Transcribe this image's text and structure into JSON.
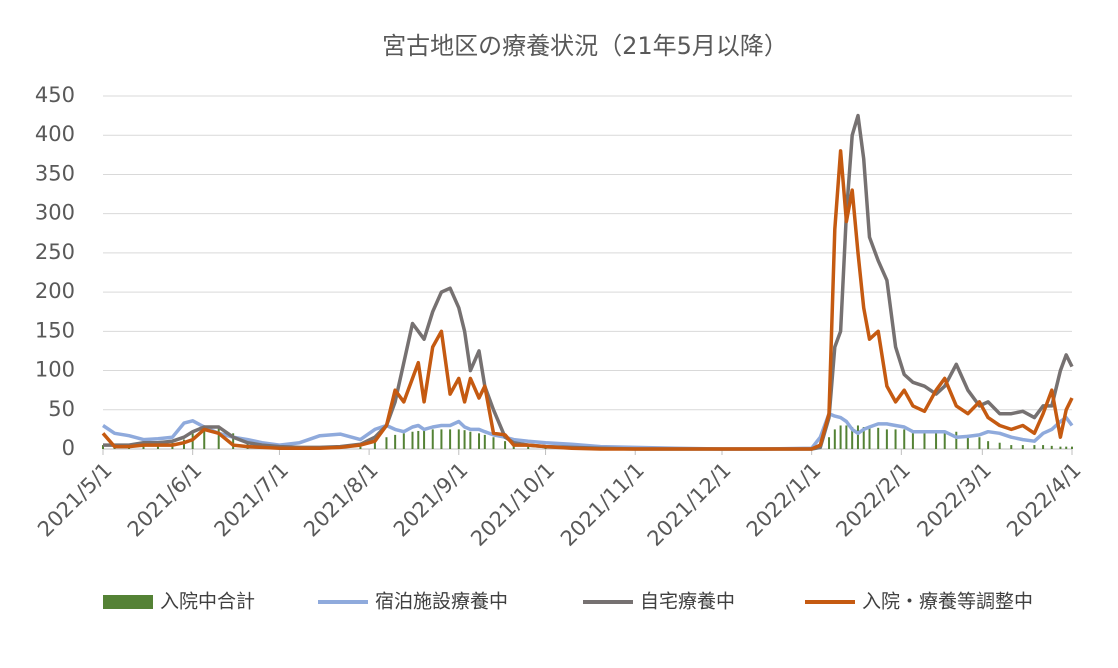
{
  "chart_data": {
    "type": "combo",
    "title": "宮古地区の療養状況（21年5月以降）",
    "x": [
      "2021/5/1",
      "2021/5/5",
      "2021/5/10",
      "2021/5/15",
      "2021/5/20",
      "2021/5/25",
      "2021/5/29",
      "2021/6/1",
      "2021/6/5",
      "2021/6/10",
      "2021/6/15",
      "2021/6/20",
      "2021/6/25",
      "2021/7/1",
      "2021/7/8",
      "2021/7/15",
      "2021/7/22",
      "2021/7/29",
      "2021/8/3",
      "2021/8/7",
      "2021/8/10",
      "2021/8/13",
      "2021/8/16",
      "2021/8/18",
      "2021/8/20",
      "2021/8/23",
      "2021/8/26",
      "2021/8/29",
      "2021/9/1",
      "2021/9/3",
      "2021/9/5",
      "2021/9/8",
      "2021/9/10",
      "2021/9/13",
      "2021/9/17",
      "2021/9/20",
      "2021/9/25",
      "2021/10/1",
      "2021/10/10",
      "2021/10/20",
      "2021/11/1",
      "2021/11/15",
      "2021/12/1",
      "2021/12/15",
      "2022/1/1",
      "2022/1/4",
      "2022/1/7",
      "2022/1/9",
      "2022/1/11",
      "2022/1/13",
      "2022/1/15",
      "2022/1/17",
      "2022/1/19",
      "2022/1/21",
      "2022/1/24",
      "2022/1/27",
      "2022/1/30",
      "2022/2/2",
      "2022/2/5",
      "2022/2/9",
      "2022/2/13",
      "2022/2/16",
      "2022/2/20",
      "2022/2/24",
      "2022/2/28",
      "2022/3/3",
      "2022/3/7",
      "2022/3/11",
      "2022/3/15",
      "2022/3/19",
      "2022/3/22",
      "2022/3/25",
      "2022/3/28",
      "2022/3/30",
      "2022/4/1"
    ],
    "series": [
      {
        "name": "入院中合計",
        "kind": "bar",
        "color": "#548235",
        "values": [
          5,
          5,
          5,
          6,
          6,
          8,
          12,
          20,
          30,
          30,
          20,
          10,
          8,
          5,
          3,
          2,
          2,
          3,
          12,
          15,
          18,
          20,
          22,
          23,
          25,
          25,
          25,
          25,
          25,
          24,
          22,
          20,
          18,
          15,
          10,
          8,
          5,
          3,
          2,
          1,
          0,
          0,
          0,
          0,
          0,
          2,
          15,
          25,
          30,
          30,
          28,
          30,
          28,
          28,
          27,
          25,
          25,
          25,
          24,
          22,
          20,
          20,
          22,
          18,
          15,
          10,
          8,
          5,
          5,
          5,
          5,
          4,
          3,
          3,
          3
        ]
      },
      {
        "name": "宿泊施設療養中",
        "kind": "line",
        "color": "#8faadc",
        "values": [
          30,
          20,
          17,
          12,
          13,
          15,
          33,
          36,
          28,
          20,
          15,
          12,
          8,
          5,
          8,
          17,
          19,
          12,
          25,
          30,
          25,
          22,
          28,
          30,
          25,
          28,
          30,
          30,
          35,
          28,
          25,
          25,
          22,
          18,
          15,
          12,
          10,
          8,
          6,
          3,
          2,
          1,
          0,
          0,
          1,
          15,
          45,
          42,
          40,
          35,
          25,
          20,
          25,
          28,
          32,
          32,
          30,
          28,
          22,
          22,
          22,
          22,
          15,
          16,
          18,
          22,
          20,
          15,
          12,
          10,
          20,
          25,
          35,
          40,
          30
        ]
      },
      {
        "name": "自宅療養中",
        "kind": "line",
        "color": "#767171",
        "values": [
          5,
          5,
          5,
          8,
          8,
          10,
          15,
          22,
          28,
          28,
          15,
          8,
          5,
          3,
          2,
          2,
          3,
          6,
          15,
          30,
          60,
          110,
          160,
          150,
          140,
          175,
          200,
          205,
          180,
          150,
          100,
          125,
          80,
          50,
          15,
          8,
          5,
          3,
          2,
          1,
          0,
          0,
          0,
          0,
          0,
          2,
          40,
          130,
          150,
          300,
          400,
          425,
          370,
          270,
          240,
          215,
          130,
          95,
          85,
          80,
          70,
          80,
          108,
          75,
          55,
          60,
          45,
          45,
          48,
          40,
          55,
          55,
          100,
          120,
          105
        ]
      },
      {
        "name": "入院・療養等調整中",
        "kind": "line",
        "color": "#c55a11",
        "values": [
          20,
          3,
          3,
          5,
          5,
          5,
          8,
          12,
          25,
          20,
          5,
          3,
          2,
          1,
          1,
          1,
          2,
          5,
          10,
          30,
          75,
          60,
          90,
          110,
          60,
          130,
          150,
          70,
          90,
          60,
          90,
          65,
          80,
          20,
          18,
          5,
          5,
          3,
          1,
          0,
          0,
          0,
          0,
          0,
          0,
          5,
          45,
          280,
          380,
          290,
          330,
          250,
          180,
          140,
          150,
          80,
          60,
          75,
          55,
          48,
          75,
          90,
          55,
          45,
          60,
          40,
          30,
          25,
          30,
          20,
          45,
          75,
          15,
          50,
          65
        ]
      }
    ],
    "xlim": [
      "2021/5/1",
      "2022/4/1"
    ],
    "xticks": [
      "2021/5/1",
      "2021/6/1",
      "2021/7/1",
      "2021/8/1",
      "2021/9/1",
      "2021/10/1",
      "2021/11/1",
      "2021/12/1",
      "2022/1/1",
      "2022/2/1",
      "2022/3/1",
      "2022/4/1"
    ],
    "ylim": [
      0,
      450
    ],
    "yticks": [
      0,
      50,
      100,
      150,
      200,
      250,
      300,
      350,
      400,
      450
    ],
    "grid": true
  }
}
